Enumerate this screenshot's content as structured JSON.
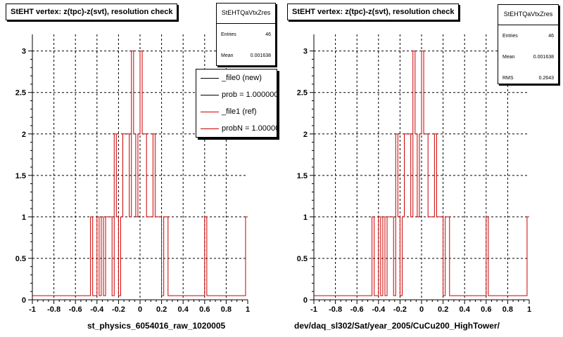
{
  "footer_text": "",
  "chart_data": [
    {
      "type": "histogram",
      "title": "StEHT  vertex: z(tpc)-z(svt), resolution check",
      "xlabel": "st_physics_6054016_raw_1020005",
      "ylabel": "",
      "xlim": [
        -1,
        1
      ],
      "ylim": [
        0,
        3.2
      ],
      "grid": true,
      "x_ticks": [
        "-1",
        "-0.8",
        "-0.6",
        "-0.4",
        "-0.2",
        "0",
        "0.2",
        "0.4",
        "0.6",
        "0.8",
        "1"
      ],
      "y_ticks": [
        "0",
        "0.5",
        "1",
        "1.5",
        "2",
        "2.5",
        "3"
      ],
      "bin_width": 0.02,
      "bins": [
        {
          "x": -0.45,
          "y": 1
        },
        {
          "x": -0.39,
          "y": 1
        },
        {
          "x": -0.35,
          "y": 1
        },
        {
          "x": -0.31,
          "y": 1
        },
        {
          "x": -0.29,
          "y": 1
        },
        {
          "x": -0.27,
          "y": 1
        },
        {
          "x": -0.23,
          "y": 2
        },
        {
          "x": -0.21,
          "y": 1
        },
        {
          "x": -0.17,
          "y": 1
        },
        {
          "x": -0.15,
          "y": 2
        },
        {
          "x": -0.13,
          "y": 2
        },
        {
          "x": -0.11,
          "y": 2
        },
        {
          "x": -0.09,
          "y": 1
        },
        {
          "x": -0.07,
          "y": 3
        },
        {
          "x": -0.05,
          "y": 2
        },
        {
          "x": -0.03,
          "y": 1
        },
        {
          "x": -0.01,
          "y": 2
        },
        {
          "x": 0.01,
          "y": 3
        },
        {
          "x": 0.03,
          "y": 2
        },
        {
          "x": 0.05,
          "y": 2
        },
        {
          "x": 0.07,
          "y": 1
        },
        {
          "x": 0.09,
          "y": 1
        },
        {
          "x": 0.11,
          "y": 1
        },
        {
          "x": 0.13,
          "y": 2
        },
        {
          "x": 0.15,
          "y": 1
        },
        {
          "x": 0.17,
          "y": 1
        },
        {
          "x": 0.19,
          "y": 1
        },
        {
          "x": 0.23,
          "y": 1
        },
        {
          "x": 0.25,
          "y": 1
        },
        {
          "x": 0.61,
          "y": 1
        },
        {
          "x": 0.99,
          "y": 1
        }
      ],
      "baseline_value": 0.05,
      "stats": {
        "name": "StEHTQaVtxZres",
        "rows": [
          {
            "label": "Entries",
            "value": "46"
          },
          {
            "label": "Mean",
            "value": "0.001638"
          }
        ]
      },
      "legend": {
        "position": "top-right",
        "entries": [
          {
            "label": "_file0 (new)",
            "color": "#000000"
          },
          {
            "label": "prob = 1.000000",
            "color": "#000000"
          },
          {
            "label": "_file1 (ref)",
            "color": "#cc0000"
          },
          {
            "label": "probN = 1.000000",
            "color": "#cc0000"
          }
        ]
      },
      "line_color": "#cc0000"
    },
    {
      "type": "histogram",
      "title": "StEHT  vertex: z(tpc)-z(svt), resolution check",
      "xlabel": "dev/daq_sl302/Sat/year_2005/CuCu200_HighTower/",
      "ylabel": "",
      "xlim": [
        -1,
        1
      ],
      "ylim": [
        0,
        3.2
      ],
      "grid": true,
      "x_ticks": [
        "-1",
        "-0.8",
        "-0.6",
        "-0.4",
        "-0.2",
        "0",
        "0.2",
        "0.4",
        "0.6",
        "0.8",
        "1"
      ],
      "y_ticks": [
        "0",
        "0.5",
        "1",
        "1.5",
        "2",
        "2.5",
        "3"
      ],
      "bin_width": 0.02,
      "bins": [
        {
          "x": -0.45,
          "y": 1
        },
        {
          "x": -0.39,
          "y": 1
        },
        {
          "x": -0.35,
          "y": 1
        },
        {
          "x": -0.31,
          "y": 1
        },
        {
          "x": -0.29,
          "y": 1
        },
        {
          "x": -0.27,
          "y": 1
        },
        {
          "x": -0.23,
          "y": 2
        },
        {
          "x": -0.21,
          "y": 1
        },
        {
          "x": -0.17,
          "y": 1
        },
        {
          "x": -0.15,
          "y": 2
        },
        {
          "x": -0.13,
          "y": 2
        },
        {
          "x": -0.11,
          "y": 2
        },
        {
          "x": -0.09,
          "y": 1
        },
        {
          "x": -0.07,
          "y": 3
        },
        {
          "x": -0.05,
          "y": 2
        },
        {
          "x": -0.03,
          "y": 1
        },
        {
          "x": -0.01,
          "y": 2
        },
        {
          "x": 0.01,
          "y": 3
        },
        {
          "x": 0.03,
          "y": 2
        },
        {
          "x": 0.05,
          "y": 2
        },
        {
          "x": 0.07,
          "y": 1
        },
        {
          "x": 0.09,
          "y": 1
        },
        {
          "x": 0.11,
          "y": 1
        },
        {
          "x": 0.13,
          "y": 2
        },
        {
          "x": 0.15,
          "y": 1
        },
        {
          "x": 0.17,
          "y": 1
        },
        {
          "x": 0.19,
          "y": 1
        },
        {
          "x": 0.23,
          "y": 1
        },
        {
          "x": 0.25,
          "y": 1
        },
        {
          "x": 0.61,
          "y": 1
        },
        {
          "x": 0.99,
          "y": 1
        }
      ],
      "baseline_value": 0.05,
      "stats": {
        "name": "StEHTQaVtxZres",
        "rows": [
          {
            "label": "Entries",
            "value": "46"
          },
          {
            "label": "Mean",
            "value": "0.001638"
          },
          {
            "label": "RMS",
            "value": "0.2643"
          }
        ]
      },
      "line_color": "#cc0000"
    }
  ]
}
